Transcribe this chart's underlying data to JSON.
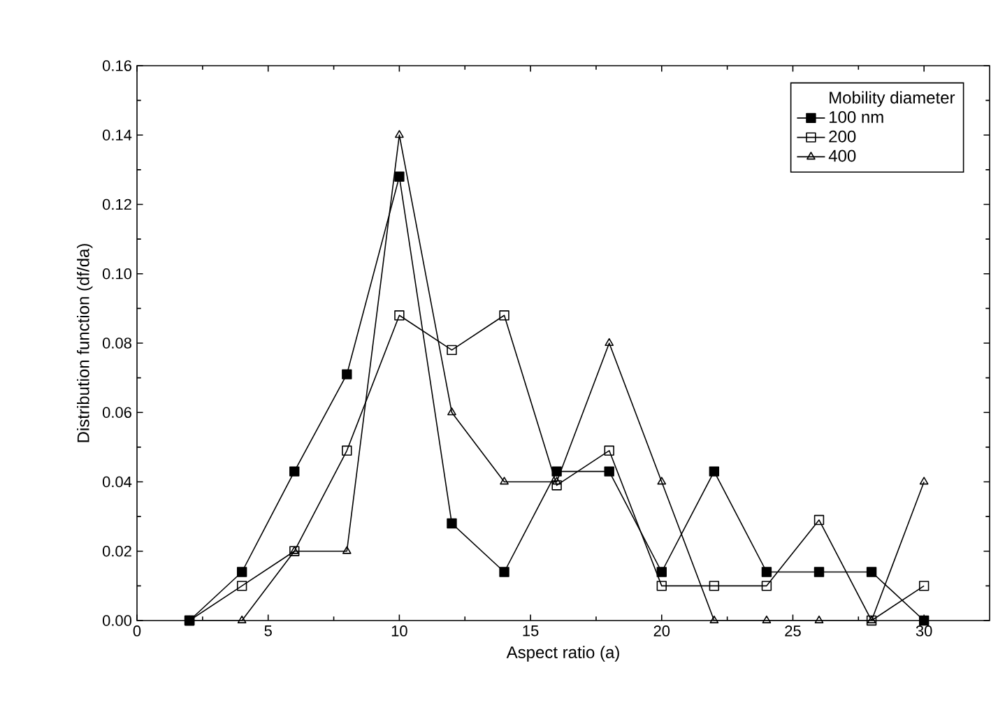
{
  "chart_data": {
    "type": "line",
    "xlabel": "Aspect ratio (a)",
    "ylabel": "Distribution function (df/da)",
    "legend_title": "Mobility diameter",
    "legend": "top right",
    "line_style": "solid",
    "grid": false,
    "x": [
      2,
      4,
      6,
      8,
      10,
      12,
      14,
      16,
      18,
      20,
      22,
      24,
      26,
      28,
      30
    ],
    "xlim": [
      0,
      32.5
    ],
    "xticks": [
      0,
      5,
      10,
      15,
      20,
      25,
      30
    ],
    "ylim": [
      0,
      0.16
    ],
    "yticks": [
      {
        "value": 0,
        "label": "0.00"
      },
      {
        "value": 0.02,
        "label": "0.02"
      },
      {
        "value": 0.04,
        "label": "0.04"
      },
      {
        "value": 0.06,
        "label": "0.06"
      },
      {
        "value": 0.08,
        "label": "0.08"
      },
      {
        "value": 0.1,
        "label": "0.10"
      },
      {
        "value": 0.12,
        "label": "0.12"
      },
      {
        "value": 0.14,
        "label": "0.14"
      },
      {
        "value": 0.16,
        "label": "0.16"
      }
    ],
    "series": [
      {
        "name": "100 nm",
        "color": "#000000",
        "marker": "square",
        "values": [
          0,
          0.014,
          0.043,
          0.071,
          0.128,
          0.028,
          0.014,
          0.043,
          0.043,
          0.014,
          0.043,
          0.014,
          0.014,
          0.014,
          0
        ]
      },
      {
        "name": "200",
        "color": "#000000",
        "marker": "square_open",
        "values": [
          0,
          0.01,
          0.02,
          0.049,
          0.088,
          0.078,
          0.088,
          0.039,
          0.049,
          0.01,
          0.01,
          0.01,
          0.029,
          0,
          0.01
        ]
      },
      {
        "name": "400",
        "color": "#000000",
        "marker": "triangle",
        "values": [
          0,
          0,
          0.02,
          0.02,
          0.14,
          0.06,
          0.04,
          0.04,
          0.08,
          0.04,
          0,
          0,
          0,
          0,
          0.04
        ]
      }
    ]
  }
}
